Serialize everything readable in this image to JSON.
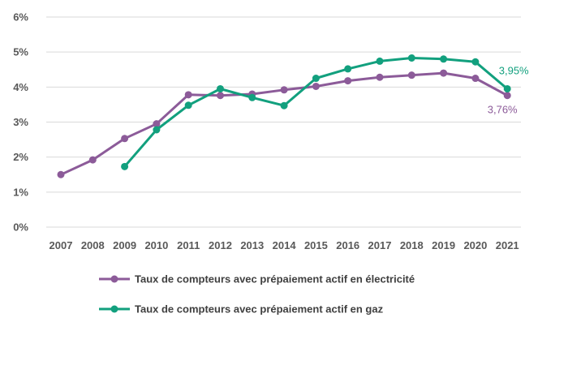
{
  "chart_data": {
    "type": "line",
    "title": "",
    "xlabel": "",
    "ylabel": "",
    "x": [
      "2007",
      "2008",
      "2009",
      "2010",
      "2011",
      "2012",
      "2013",
      "2014",
      "2015",
      "2016",
      "2017",
      "2018",
      "2019",
      "2020",
      "2021"
    ],
    "ylim": [
      0,
      6
    ],
    "y_ticks": [
      "0%",
      "1%",
      "2%",
      "3%",
      "4%",
      "5%",
      "6%"
    ],
    "grid": true,
    "legend_position": "bottom",
    "series": [
      {
        "name": "Taux de compteurs avec prépaiement actif en électricité",
        "color": "#8C5B99",
        "values": [
          1.5,
          1.92,
          2.53,
          2.95,
          3.78,
          3.76,
          3.8,
          3.92,
          4.02,
          4.18,
          4.28,
          4.34,
          4.4,
          4.25,
          3.76
        ]
      },
      {
        "name": "Taux de compteurs avec prépaiement actif en gaz",
        "color": "#12A07E",
        "values": [
          null,
          null,
          1.73,
          2.78,
          3.48,
          3.95,
          3.7,
          3.47,
          4.25,
          4.52,
          4.74,
          4.83,
          4.8,
          4.72,
          3.95
        ]
      }
    ],
    "annotations": [
      {
        "series": 1,
        "x": "2021",
        "text": "3,95%"
      },
      {
        "series": 0,
        "x": "2021",
        "text": "3,76%"
      }
    ]
  }
}
